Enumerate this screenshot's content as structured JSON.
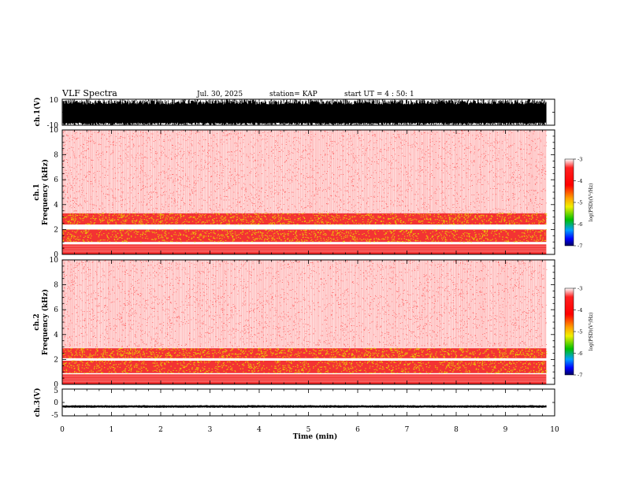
{
  "header": {
    "title": "VLF Spectra",
    "date": "Jul. 30, 2025",
    "station": "station= KAP",
    "start": "start  UT  =   4 : 50: 1"
  },
  "chart_data": [
    {
      "type": "line",
      "id": "ch1-waveform",
      "ylabel": "ch.1(V)",
      "yticks": [
        "10",
        "-10"
      ],
      "ylim": [
        -10,
        10
      ],
      "xlim": [
        0,
        10
      ],
      "x_end": 9.83,
      "description_values": {
        "envelope_min": -10,
        "envelope_max": 10,
        "baseline_max_typical": 6,
        "baseline_min_typical": -8
      }
    },
    {
      "type": "heatmap",
      "id": "ch1-spectrogram",
      "ylabel_line1": "ch.1",
      "ylabel_line2": "Frequency (kHz)",
      "yticks": [
        "0",
        "2",
        "4",
        "6",
        "8",
        "10"
      ],
      "ylim": [
        0,
        10
      ],
      "xlim": [
        0,
        10
      ],
      "x_end": 9.83,
      "bands": [
        {
          "from": 0.0,
          "to": 0.8,
          "level": "strong"
        },
        {
          "from": 1.0,
          "to": 2.0,
          "level": "strong-yellow"
        },
        {
          "from": 2.4,
          "to": 3.3,
          "level": "strong-yellow"
        },
        {
          "from": 3.3,
          "to": 10.0,
          "level": "weak"
        }
      ],
      "colorbar": {
        "label": "log(PSD)(V²/Hz)",
        "ticks": [
          "-3",
          "-4",
          "-5",
          "-6",
          "-7"
        ],
        "range": [
          -7,
          -3
        ]
      }
    },
    {
      "type": "heatmap",
      "id": "ch2-spectrogram",
      "ylabel_line1": "ch.2",
      "ylabel_line2": "Frequency (kHz)",
      "yticks": [
        "0",
        "2",
        "4",
        "6",
        "8",
        "10"
      ],
      "ylim": [
        0,
        10
      ],
      "xlim": [
        0,
        10
      ],
      "x_end": 9.83,
      "bands": [
        {
          "from": 0.0,
          "to": 0.8,
          "level": "strong"
        },
        {
          "from": 0.9,
          "to": 1.9,
          "level": "strong-yellow"
        },
        {
          "from": 2.1,
          "to": 2.9,
          "level": "strong-yellow"
        },
        {
          "from": 2.9,
          "to": 10.0,
          "level": "weak"
        }
      ],
      "colorbar": {
        "label": "log(PSD)(V²/Hz)",
        "ticks": [
          "-3",
          "-4",
          "-5",
          "-6",
          "-7"
        ],
        "range": [
          -7,
          -3
        ]
      }
    },
    {
      "type": "line",
      "id": "ch3-waveform",
      "ylabel": "ch.3(V)",
      "yticks": [
        "5",
        "0",
        "-5"
      ],
      "ylim": [
        -5,
        5
      ],
      "xlim": [
        0,
        10
      ],
      "x_end": 9.83,
      "description_values": {
        "mean": -1.5,
        "amplitude": 0.5
      }
    }
  ],
  "xaxis": {
    "label": "Time (min)",
    "ticks": [
      "0",
      "1",
      "2",
      "3",
      "4",
      "5",
      "6",
      "7",
      "8",
      "9",
      "10"
    ]
  },
  "colors": {
    "weak": "#ff5a5a",
    "strong": "#f00000",
    "yellow": "#e8e000",
    "colorbar": [
      "#6a0000",
      "#ff0000",
      "#ff8000",
      "#e0e000",
      "#00c000",
      "#00b0ff",
      "#0000ff",
      "#00004a"
    ]
  }
}
